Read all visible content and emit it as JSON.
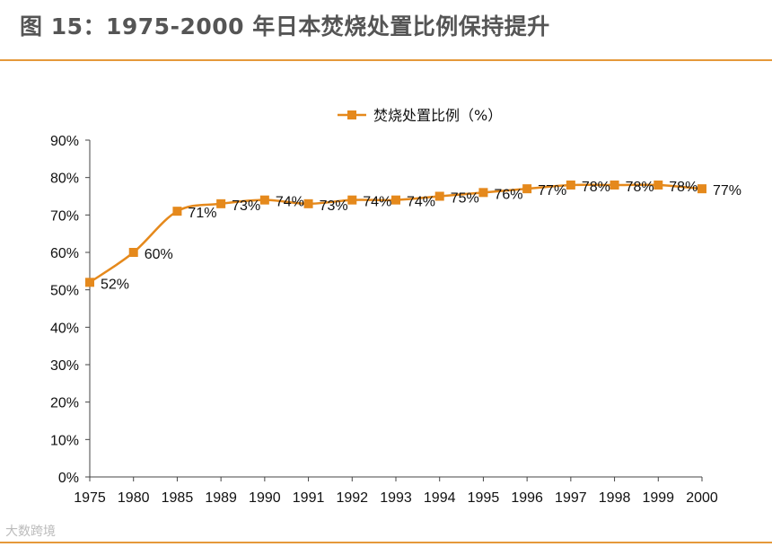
{
  "figure": {
    "title": "图 15：1975-2000 年日本焚烧处置比例保持提升",
    "watermark": "大数跨境"
  },
  "colors": {
    "series": "#e5891c",
    "rule": "#e5993a",
    "axis": "#444444"
  },
  "chart_data": {
    "type": "line",
    "title": "",
    "xlabel": "",
    "ylabel": "",
    "categories": [
      "1975",
      "1980",
      "1985",
      "1989",
      "1990",
      "1991",
      "1992",
      "1993",
      "1994",
      "1995",
      "1996",
      "1997",
      "1998",
      "1999",
      "2000"
    ],
    "series": [
      {
        "name": "焚烧处置比例（%）",
        "values": [
          52,
          60,
          71,
          73,
          74,
          73,
          74,
          74,
          75,
          76,
          77,
          78,
          78,
          78,
          77
        ],
        "data_labels": [
          "52%",
          "60%",
          "71%",
          "73%",
          "74%",
          "73%",
          "74%",
          "74%",
          "75%",
          "76%",
          "77%",
          "78%",
          "78%",
          "78%",
          "77%"
        ],
        "marker": "square",
        "smooth": true
      }
    ],
    "ylim": [
      0,
      90
    ],
    "yticks": [
      "0%",
      "10%",
      "20%",
      "30%",
      "40%",
      "50%",
      "60%",
      "70%",
      "80%",
      "90%"
    ],
    "ytick_values": [
      0,
      10,
      20,
      30,
      40,
      50,
      60,
      70,
      80,
      90
    ],
    "grid": false,
    "legend_position": "top-center"
  }
}
